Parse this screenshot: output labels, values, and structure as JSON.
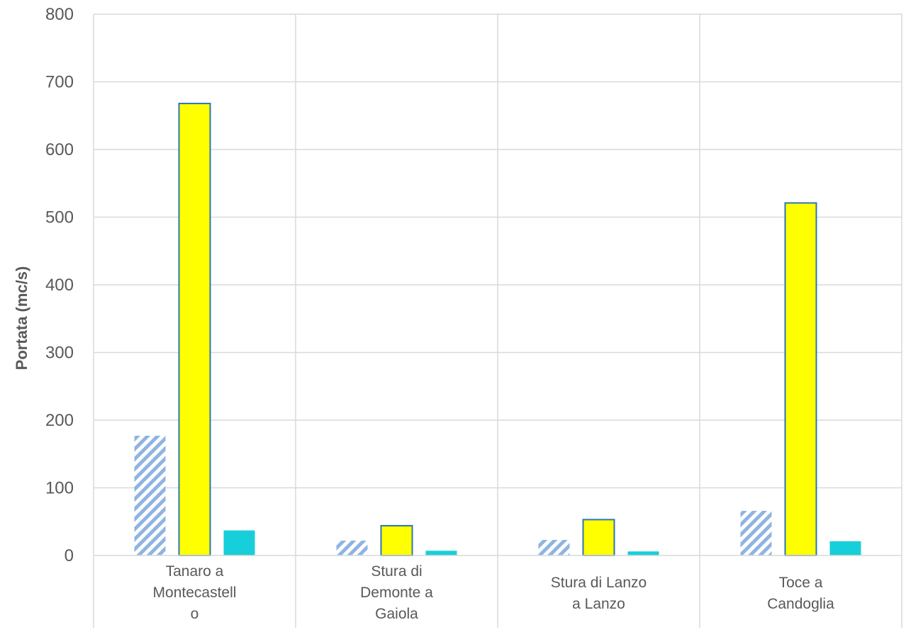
{
  "chart_data": {
    "type": "bar",
    "title": "",
    "xlabel": "",
    "ylabel": "Portata (mc/s)",
    "ylim": [
      0,
      800
    ],
    "yticks": [
      0,
      100,
      200,
      300,
      400,
      500,
      600,
      700,
      800
    ],
    "grid": true,
    "legend": "none",
    "categories": [
      [
        "Tanaro a",
        "Montecastell",
        "o"
      ],
      [
        "Stura di",
        "Demonte a",
        "Gaiola"
      ],
      [
        "Stura di Lanzo",
        "a Lanzo"
      ],
      [
        "Toce a",
        "Candoglia"
      ]
    ],
    "series": [
      {
        "values": [
          177,
          22,
          23,
          66
        ],
        "color": "#8FB4E3",
        "pattern": "diagonal-hatch"
      },
      {
        "values": [
          668,
          44,
          53,
          521
        ],
        "color": "#FFFF00",
        "stroke": "#2E75B6"
      },
      {
        "values": [
          37,
          7,
          6,
          21
        ],
        "color": "#17CFDA"
      }
    ]
  }
}
